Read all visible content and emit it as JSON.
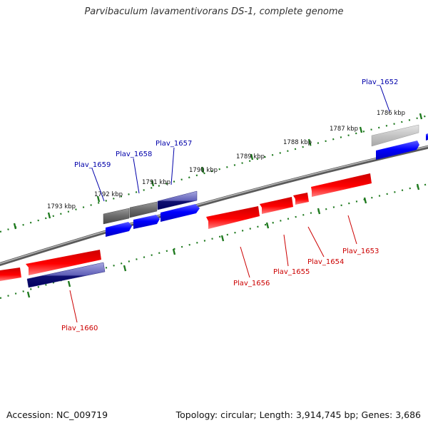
{
  "title": "Parvibaculum lavamentivorans DS-1, complete genome",
  "footer": {
    "accession": "Accession: NC_009719",
    "summary": "Topology: circular; Length: 3,914,745 bp; Genes: 3,686"
  },
  "colors": {
    "forward": "#0000ff",
    "forward_dark": "#00007a",
    "reverse": "#ff0000",
    "reverse_dark": "#c80000",
    "purple": "#7070c0",
    "gray": "#707070",
    "light_gray": "#c0c0c0",
    "tick": "#1f7a1f",
    "backbone": "#7a7a7a",
    "forward_label": "#0000aa",
    "reverse_label": "#cc0000"
  },
  "kbp_labels": [
    "1786 kbp",
    "1787 kbp",
    "1788 kbp",
    "1789 kbp",
    "1790 kbp",
    "1791 kbp",
    "1792 kbp",
    "1793 kbp"
  ],
  "gene_labels": {
    "forward": [
      "Plav_1652",
      "Plav_1657",
      "Plav_1658",
      "Plav_1659"
    ],
    "reverse": [
      "Plav_1653",
      "Plav_1654",
      "Plav_1655",
      "Plav_1656",
      "Plav_1660"
    ]
  }
}
